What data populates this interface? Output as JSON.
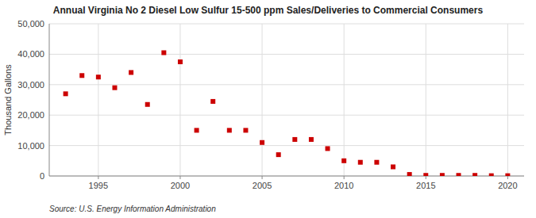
{
  "chart_data": {
    "type": "scatter",
    "title": "Annual Virginia No 2 Diesel Low Sulfur 15-500 ppm Sales/Deliveries to Commercial Consumers",
    "ylabel": "Thousand Gallons",
    "annotation": "Source: U.S. Energy Information Administration",
    "x": [
      1993,
      1994,
      1995,
      1996,
      1997,
      1998,
      1999,
      2000,
      2001,
      2002,
      2003,
      2004,
      2005,
      2006,
      2007,
      2008,
      2009,
      2010,
      2011,
      2012,
      2013,
      2014,
      2015,
      2016,
      2017,
      2018,
      2019,
      2020
    ],
    "values": [
      27000,
      33000,
      32500,
      29000,
      34000,
      23500,
      40500,
      37500,
      15000,
      24500,
      15000,
      15000,
      11000,
      7000,
      12000,
      12000,
      9000,
      5000,
      4500,
      4500,
      3000,
      500,
      200,
      200,
      200,
      200,
      100,
      100
    ],
    "color": "#cc0000",
    "marker": "square",
    "xlim": [
      1992,
      2021
    ],
    "xticks": [
      1995,
      2000,
      2005,
      2010,
      2015,
      2020
    ],
    "ylim": [
      0,
      50000
    ],
    "yticks": [
      0,
      {
        "value": 10000,
        "label": "10,000"
      },
      {
        "value": 20000,
        "label": "20,000"
      },
      {
        "value": 30000,
        "label": "30,000"
      },
      {
        "value": 40000,
        "label": "40,000"
      },
      {
        "value": 50000,
        "label": "50,000"
      }
    ],
    "grid": true
  }
}
